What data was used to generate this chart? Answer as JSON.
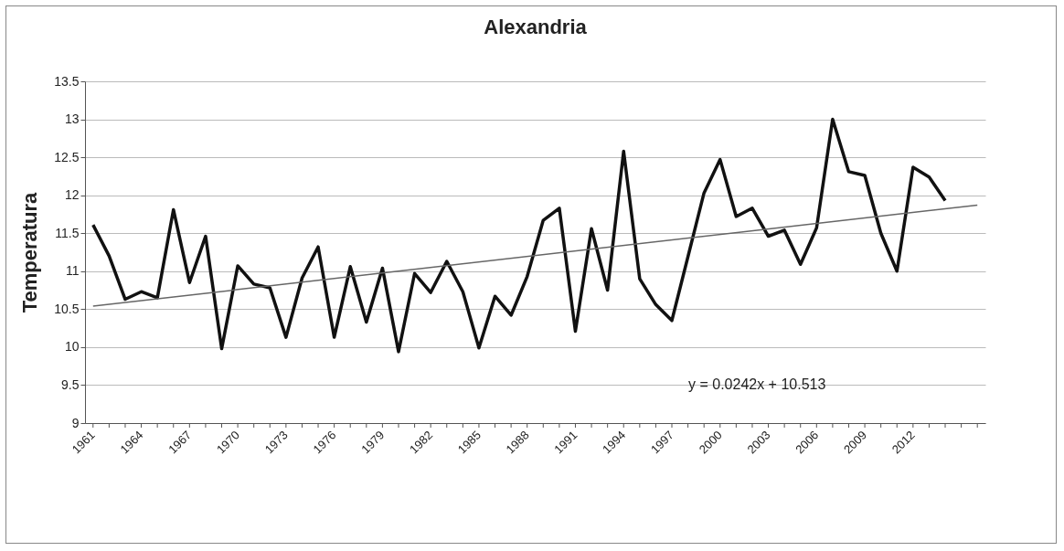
{
  "chart_data": {
    "type": "line",
    "title": "Alexandria",
    "ylabel": "Temperatura",
    "x": [
      1961,
      1962,
      1963,
      1964,
      1965,
      1966,
      1967,
      1968,
      1969,
      1970,
      1971,
      1972,
      1973,
      1974,
      1975,
      1976,
      1977,
      1978,
      1979,
      1980,
      1981,
      1982,
      1983,
      1984,
      1985,
      1986,
      1987,
      1988,
      1989,
      1990,
      1991,
      1992,
      1993,
      1994,
      1995,
      1996,
      1997,
      1998,
      1999,
      2000,
      2001,
      2002,
      2003,
      2004,
      2005,
      2006,
      2007,
      2008,
      2009,
      2010,
      2011,
      2012,
      2013,
      2014
    ],
    "series": [
      {
        "color": "#111111",
        "values": [
          11.61,
          11.2,
          10.63,
          10.73,
          10.65,
          11.81,
          10.85,
          11.46,
          9.98,
          11.07,
          10.83,
          10.78,
          10.13,
          10.91,
          11.32,
          10.13,
          11.06,
          10.33,
          11.04,
          9.94,
          10.97,
          10.72,
          11.13,
          10.73,
          9.99,
          10.67,
          10.42,
          10.93,
          11.67,
          11.83,
          10.21,
          11.56,
          10.75,
          12.58,
          10.9,
          10.56,
          10.35,
          11.19,
          12.03,
          12.47,
          11.72,
          11.83,
          11.46,
          11.54,
          11.09,
          11.57,
          13.0,
          12.31,
          12.26,
          11.5,
          11.0,
          12.37,
          12.24,
          11.93
        ]
      },
      {
        "type": "line",
        "color": "#666666",
        "x": [
          1961,
          2016
        ],
        "values": [
          10.54,
          11.87
        ]
      }
    ],
    "xlim": [
      1960.5,
      2016.5
    ],
    "xticks": [
      1961,
      {
        "value": 1962,
        "label": null
      },
      {
        "value": 1963,
        "label": null
      },
      1964,
      {
        "value": 1965,
        "label": null
      },
      {
        "value": 1966,
        "label": null
      },
      1967,
      {
        "value": 1968,
        "label": null
      },
      {
        "value": 1969,
        "label": null
      },
      1970,
      {
        "value": 1971,
        "label": null
      },
      {
        "value": 1972,
        "label": null
      },
      1973,
      {
        "value": 1974,
        "label": null
      },
      {
        "value": 1975,
        "label": null
      },
      1976,
      {
        "value": 1977,
        "label": null
      },
      {
        "value": 1978,
        "label": null
      },
      1979,
      {
        "value": 1980,
        "label": null
      },
      {
        "value": 1981,
        "label": null
      },
      1982,
      {
        "value": 1983,
        "label": null
      },
      {
        "value": 1984,
        "label": null
      },
      1985,
      {
        "value": 1986,
        "label": null
      },
      {
        "value": 1987,
        "label": null
      },
      1988,
      {
        "value": 1989,
        "label": null
      },
      {
        "value": 1990,
        "label": null
      },
      1991,
      {
        "value": 1992,
        "label": null
      },
      {
        "value": 1993,
        "label": null
      },
      1994,
      {
        "value": 1995,
        "label": null
      },
      {
        "value": 1996,
        "label": null
      },
      1997,
      {
        "value": 1998,
        "label": null
      },
      {
        "value": 1999,
        "label": null
      },
      2000,
      {
        "value": 2001,
        "label": null
      },
      {
        "value": 2002,
        "label": null
      },
      2003,
      {
        "value": 2004,
        "label": null
      },
      {
        "value": 2005,
        "label": null
      },
      2006,
      {
        "value": 2007,
        "label": null
      },
      {
        "value": 2008,
        "label": null
      },
      2009,
      {
        "value": 2010,
        "label": null
      },
      {
        "value": 2011,
        "label": null
      },
      2012,
      {
        "value": 2013,
        "label": null
      },
      {
        "value": 2014,
        "label": null
      },
      {
        "value": 2015,
        "label": null
      },
      {
        "value": 2016,
        "label": null
      }
    ],
    "ylim": [
      9,
      13.5
    ],
    "yticks": [
      9,
      9.5,
      10,
      10.5,
      11,
      11.5,
      12,
      12.5,
      13,
      13.5
    ],
    "grid": "y",
    "marker": "none",
    "line_style": "solid",
    "annotations": [
      "y = 0.0242x + 10.513"
    ]
  }
}
